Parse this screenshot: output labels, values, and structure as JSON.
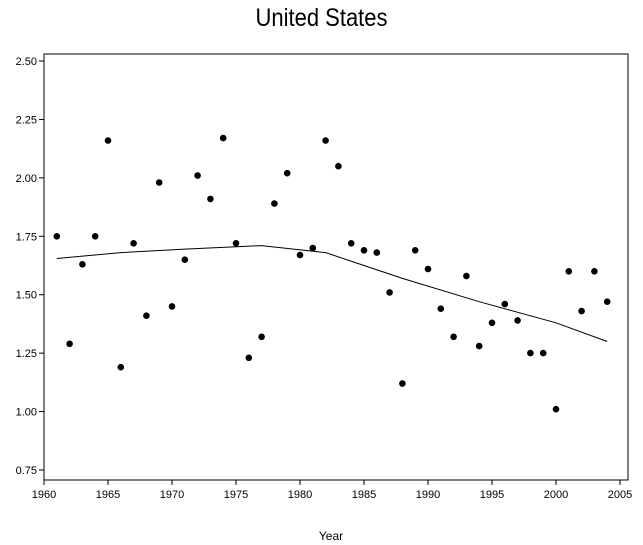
{
  "chart_data": {
    "type": "scatter",
    "title": "United States",
    "xlabel": "Year",
    "ylabel": "",
    "xlim": [
      1960,
      2005
    ],
    "ylim": [
      0.75,
      2.5
    ],
    "xticks": [
      1960,
      1965,
      1970,
      1975,
      1980,
      1985,
      1990,
      1995,
      2000,
      2005
    ],
    "yticks": [
      "0.75",
      "1.00",
      "1.25",
      "1.50",
      "1.75",
      "2.00",
      "2.25",
      "2.50"
    ],
    "grid": false,
    "series": [
      {
        "type": "scatter",
        "color": "#000000",
        "x": [
          1961,
          1962,
          1963,
          1964,
          1965,
          1966,
          1967,
          1968,
          1969,
          1970,
          1971,
          1972,
          1973,
          1974,
          1975,
          1976,
          1977,
          1978,
          1979,
          1980,
          1981,
          1982,
          1983,
          1984,
          1985,
          1986,
          1987,
          1988,
          1989,
          1990,
          1991,
          1992,
          1993,
          1994,
          1995,
          1996,
          1997,
          1998,
          1999,
          2000,
          2001,
          2002,
          2003,
          2004
        ],
        "y": [
          1.75,
          1.29,
          1.63,
          1.75,
          2.16,
          1.19,
          1.72,
          1.41,
          1.98,
          1.45,
          1.65,
          2.01,
          1.91,
          2.17,
          1.72,
          1.23,
          1.32,
          1.89,
          2.02,
          1.67,
          1.7,
          2.16,
          2.05,
          1.72,
          1.69,
          1.68,
          1.51,
          1.12,
          1.69,
          1.61,
          1.44,
          1.32,
          1.58,
          1.28,
          1.38,
          1.46,
          1.39,
          1.25,
          1.25,
          1.01,
          1.6,
          1.43,
          1.6,
          1.47
        ]
      },
      {
        "type": "line",
        "color": "#000000",
        "x": [
          1961,
          1966,
          1971,
          1977,
          1982,
          1988,
          1994,
          2000,
          2004
        ],
        "y": [
          1.655,
          1.68,
          1.695,
          1.71,
          1.68,
          1.57,
          1.47,
          1.38,
          1.3
        ]
      }
    ]
  }
}
